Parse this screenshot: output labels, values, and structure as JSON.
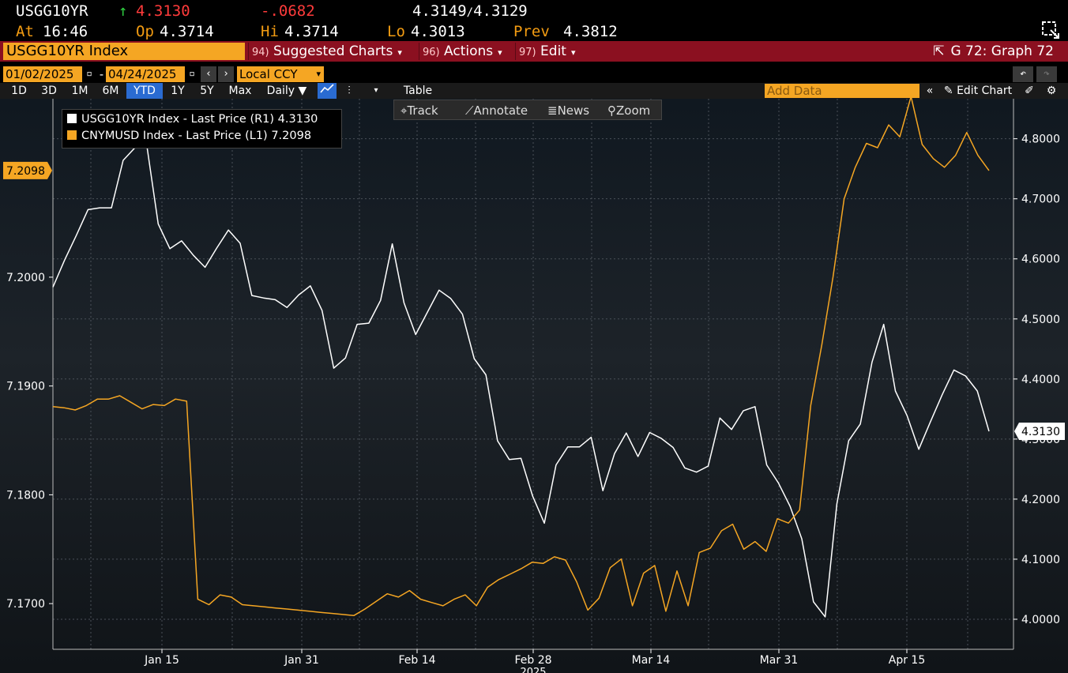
{
  "quote": {
    "ticker": "USGG10YR",
    "direction_icon": "up-arrow-icon",
    "direction_symbol": "↑",
    "last": "4.3130",
    "change": "-.0682",
    "bid": "4.3149",
    "ask_sep": "/",
    "ask": "4.3129",
    "at_label": "At",
    "at_time": "16:46",
    "op_label": "Op",
    "op_value": "4.3714",
    "hi_label": "Hi",
    "hi_value": "4.3714",
    "lo_label": "Lo",
    "lo_value": "4.3013",
    "prev_label": "Prev",
    "prev_value": "4.3812"
  },
  "function_bar": {
    "security": "USGG10YR Index",
    "items": [
      {
        "num": "94)",
        "label": "Suggested Charts"
      },
      {
        "num": "96)",
        "label": "Actions"
      },
      {
        "num": "97)",
        "label": "Edit"
      }
    ],
    "graph_id": "G 72: Graph 72"
  },
  "controls": {
    "start_date": "01/02/2025",
    "end_date": "04/24/2025",
    "dash": "-",
    "currency": "Local CCY",
    "periods": [
      "1D",
      "3D",
      "1M",
      "6M",
      "YTD",
      "1Y",
      "5Y",
      "Max"
    ],
    "active_period": "YTD",
    "frequency": "Daily ▼",
    "table_label": "Table",
    "add_data_placeholder": "Add Data",
    "edit_chart_label": "Edit Chart",
    "tools": [
      "Track",
      "Annotate",
      "News",
      "Zoom"
    ]
  },
  "colors": {
    "usgg": "#ffffff",
    "cny": "#f5a623",
    "grid": "#4a5058",
    "axis_text": "#ffffff",
    "red_bar": "#8b1020",
    "active_period": "#2a6bd1"
  },
  "chart_data": {
    "type": "line",
    "x_tick_labels": [
      "Jan 15",
      "Jan 31",
      "Feb 14",
      "Feb 28",
      "Mar 14",
      "Mar 31",
      "Apr 15"
    ],
    "x_sub_label": "2025",
    "grid": true,
    "legend_position": "top-left",
    "left_axis": {
      "ticks": [
        "7.1700",
        "7.1800",
        "7.1900",
        "7.2000"
      ],
      "range": [
        7.1658,
        7.2164
      ]
    },
    "right_axis": {
      "ticks": [
        "4.0000",
        "4.1000",
        "4.2000",
        "4.3000",
        "4.4000",
        "4.5000",
        "4.6000",
        "4.7000",
        "4.8000"
      ],
      "range": [
        3.95,
        4.8666
      ]
    },
    "series": [
      {
        "name": "USGG10YR Index - Last Price (R1)",
        "axis": "right",
        "last": "4.3130",
        "values": [
          4.553,
          4.598,
          4.639,
          4.682,
          4.685,
          4.685,
          4.764,
          4.785,
          4.792,
          4.658,
          4.617,
          4.63,
          4.606,
          4.586,
          4.618,
          4.648,
          4.626,
          4.539,
          4.535,
          4.532,
          4.519,
          4.54,
          4.555,
          4.514,
          4.418,
          4.435,
          4.491,
          4.493,
          4.531,
          4.625,
          4.527,
          4.474,
          4.511,
          4.548,
          4.534,
          4.508,
          4.434,
          4.407,
          4.297,
          4.266,
          4.268,
          4.205,
          4.16,
          4.257,
          4.287,
          4.287,
          4.303,
          4.214,
          4.276,
          4.31,
          4.271,
          4.311,
          4.301,
          4.286,
          4.252,
          4.245,
          4.255,
          4.335,
          4.316,
          4.347,
          4.354,
          4.257,
          4.227,
          4.188,
          4.134,
          4.029,
          4.004,
          4.192,
          4.297,
          4.325,
          4.428,
          4.491,
          4.38,
          4.339,
          4.283,
          4.329,
          4.374,
          4.415,
          4.405,
          4.38,
          4.313
        ]
      },
      {
        "name": "CNYMUSD Index - Last Price (L1)",
        "axis": "left",
        "last": "7.2098",
        "values": [
          7.1881,
          7.188,
          7.1878,
          7.1882,
          7.1888,
          7.1888,
          7.1891,
          7.1885,
          7.1879,
          7.1883,
          7.1882,
          7.1888,
          7.1886,
          7.1704,
          7.1699,
          7.1708,
          7.1706,
          7.1699,
          7.1698,
          7.1697,
          7.1696,
          7.1695,
          7.1694,
          7.1693,
          7.1692,
          7.1691,
          7.169,
          7.1689,
          7.1695,
          7.1702,
          7.1709,
          7.1706,
          7.1712,
          7.1704,
          7.1701,
          7.1698,
          7.1704,
          7.1708,
          7.1698,
          7.1715,
          7.1722,
          7.1727,
          7.1732,
          7.1738,
          7.1737,
          7.1743,
          7.174,
          7.172,
          7.1694,
          7.1705,
          7.1733,
          7.1741,
          7.1698,
          7.1728,
          7.1735,
          7.1693,
          7.173,
          7.1698,
          7.1747,
          7.1751,
          7.1767,
          7.1773,
          7.175,
          7.1757,
          7.1748,
          7.1778,
          7.1774,
          7.1786,
          7.1882,
          7.1938,
          7.2,
          7.2072,
          7.2101,
          7.2123,
          7.2119,
          7.214,
          7.2129,
          7.2166,
          7.2122,
          7.2109,
          7.2101,
          7.2112,
          7.2133,
          7.2112,
          7.2098
        ]
      }
    ]
  }
}
